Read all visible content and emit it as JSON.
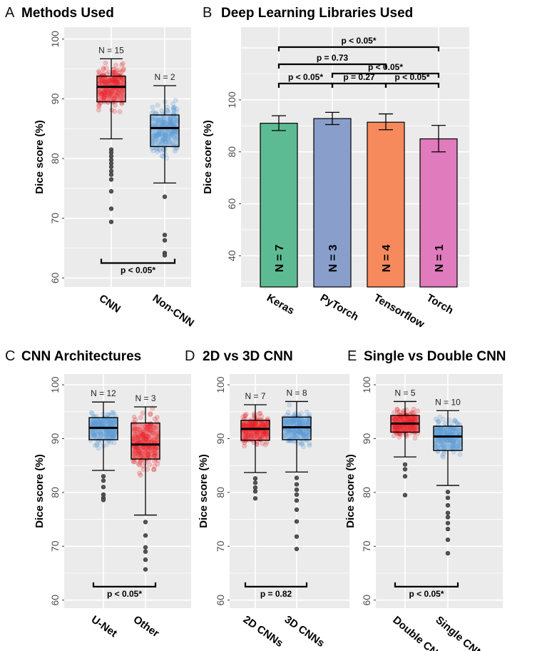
{
  "chart_data": [
    {
      "id": "A",
      "type": "box",
      "letter": "A",
      "title": "Methods Used",
      "ylabel": "Dice score (%)",
      "ylim": [
        58.5,
        102
      ],
      "yticks": [
        60,
        70,
        80,
        90,
        100
      ],
      "categories": [
        "CNN",
        "Non-CNN"
      ],
      "n_labels": [
        "N = 15",
        "N = 2"
      ],
      "colors": [
        "#e8232a",
        "#5b9bd5"
      ],
      "boxes": [
        {
          "q1": 89.5,
          "median": 92.0,
          "q3": 93.8,
          "whisker_low": 83.3,
          "whisker_high": 96.7,
          "outliers": [
            81.5,
            81.0,
            80.4,
            79.8,
            79.2,
            78.6,
            77.9,
            77.3,
            76.5,
            74.5,
            71.6,
            69.4
          ]
        },
        {
          "q1": 82.0,
          "median": 85.1,
          "q3": 87.3,
          "whisker_low": 75.9,
          "whisker_high": 92.2,
          "outliers": [
            73.6,
            67.2,
            66.3,
            64.2,
            63.8
          ]
        }
      ],
      "comparisons": [
        {
          "from": 0,
          "to": 1,
          "label": "p < 0.05*"
        }
      ]
    },
    {
      "id": "B",
      "type": "bar",
      "letter": "B",
      "title": "Deep Learning Libraries Used",
      "ylabel": "Dice score (%)",
      "ylim": [
        28,
        128
      ],
      "yticks": [
        40,
        60,
        80,
        100
      ],
      "categories": [
        "Keras",
        "PyTorch",
        "Tensorflow",
        "Torch"
      ],
      "values": [
        91.0,
        92.8,
        91.4,
        85.0
      ],
      "errors": [
        [
          88.2,
          93.9
        ],
        [
          90.5,
          95.2
        ],
        [
          88.5,
          94.6
        ],
        [
          80.0,
          90.2
        ]
      ],
      "bar_labels": [
        "N = 7",
        "N = 3",
        "N = 4",
        "N = 1"
      ],
      "colors": [
        "#5dbb93",
        "#8a9ecb",
        "#f78a5c",
        "#e07bbd"
      ],
      "comparisons": [
        {
          "from": 0,
          "to": 3,
          "label": "p < 0.05*",
          "level": 4
        },
        {
          "from": 0,
          "to": 2,
          "label": "p = 0.73",
          "level": 3
        },
        {
          "from": 1,
          "to": 3,
          "label": "p < 0.05*",
          "level": 2
        },
        {
          "from": 0,
          "to": 1,
          "label": "p < 0.05*",
          "level": 1
        },
        {
          "from": 1,
          "to": 2,
          "label": "p = 0.27",
          "level": 1
        },
        {
          "from": 2,
          "to": 3,
          "label": "p < 0.05*",
          "level": 1
        }
      ]
    },
    {
      "id": "C",
      "type": "box",
      "letter": "C",
      "title": "CNN Architectures",
      "ylabel": "Dice score (%)",
      "ylim": [
        58.5,
        102
      ],
      "yticks": [
        60,
        70,
        80,
        90,
        100
      ],
      "categories": [
        "U-Net",
        "Other"
      ],
      "n_labels": [
        "N = 12",
        "N = 3"
      ],
      "colors": [
        "#5b9bd5",
        "#e8232a"
      ],
      "boxes": [
        {
          "q1": 89.8,
          "median": 92.0,
          "q3": 93.9,
          "whisker_low": 84.1,
          "whisker_high": 96.8,
          "outliers": [
            83.0,
            82.2,
            81.0,
            79.6,
            79.0,
            78.6
          ]
        },
        {
          "q1": 86.2,
          "median": 88.9,
          "q3": 92.9,
          "whisker_low": 75.8,
          "whisker_high": 95.9,
          "outliers": [
            74.5,
            72.0,
            69.8,
            69.0,
            67.5,
            65.7
          ]
        }
      ],
      "comparisons": [
        {
          "from": 0,
          "to": 1,
          "label": "p < 0.05*"
        }
      ]
    },
    {
      "id": "D",
      "type": "box",
      "letter": "D",
      "title": "2D vs 3D CNN",
      "ylabel": "Dice score (%)",
      "ylim": [
        58.5,
        102
      ],
      "yticks": [
        60,
        70,
        80,
        90,
        100
      ],
      "categories": [
        "2D CNNs",
        "3D CNNs"
      ],
      "n_labels": [
        "N = 7",
        "N = 8"
      ],
      "colors": [
        "#e8232a",
        "#5b9bd5"
      ],
      "boxes": [
        {
          "q1": 89.7,
          "median": 91.8,
          "q3": 93.4,
          "whisker_low": 83.7,
          "whisker_high": 96.3,
          "outliers": [
            82.6,
            81.8,
            80.9,
            80.2,
            78.9
          ]
        },
        {
          "q1": 89.8,
          "median": 92.1,
          "q3": 94.0,
          "whisker_low": 83.8,
          "whisker_high": 96.9,
          "outliers": [
            82.7,
            81.5,
            80.5,
            79.6,
            78.5,
            76.8,
            74.6,
            71.8,
            69.5
          ]
        }
      ],
      "comparisons": [
        {
          "from": 0,
          "to": 1,
          "label": "p = 0.82"
        }
      ]
    },
    {
      "id": "E",
      "type": "box",
      "letter": "E",
      "title": "Single vs Double CNN",
      "ylabel": "Dice score (%)",
      "ylim": [
        58.5,
        102
      ],
      "yticks": [
        60,
        70,
        80,
        90,
        100
      ],
      "categories": [
        "Double CNN",
        "Single CNN"
      ],
      "n_labels": [
        "N = 5",
        "N = 10"
      ],
      "colors": [
        "#e8232a",
        "#5b9bd5"
      ],
      "boxes": [
        {
          "q1": 91.2,
          "median": 92.8,
          "q3": 94.3,
          "whisker_low": 86.6,
          "whisker_high": 96.9,
          "outliers": [
            85.2,
            84.3,
            83.0,
            79.5
          ]
        },
        {
          "q1": 87.8,
          "median": 90.4,
          "q3": 92.3,
          "whisker_low": 81.3,
          "whisker_high": 95.2,
          "outliers": [
            80.1,
            79.0,
            77.6,
            76.2,
            75.4,
            74.3,
            73.2,
            71.2,
            68.7
          ]
        }
      ],
      "comparisons": [
        {
          "from": 0,
          "to": 1,
          "label": "p < 0.05*"
        }
      ]
    }
  ]
}
